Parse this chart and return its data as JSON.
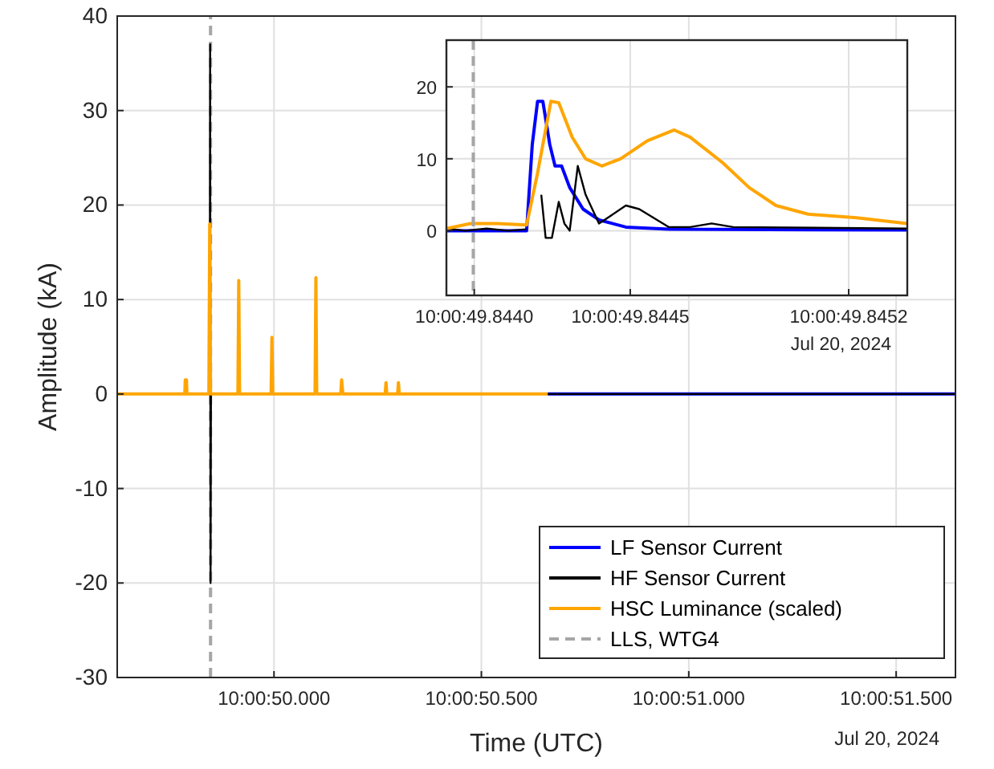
{
  "chart_data": [
    {
      "type": "line",
      "xlabel": "Time (UTC)",
      "ylabel": "Amplitude (kA)",
      "xlim": [
        "2024-07-20T10:00:49.622",
        "2024-07-20T10:00:51.643"
      ],
      "ylim": [
        -30,
        40
      ],
      "xticks": [
        {
          "value": "2024-07-20T10:00:50.000",
          "label": "10:00:50.000"
        },
        {
          "value": "2024-07-20T10:00:50.500",
          "label": "10:00:50.500"
        },
        {
          "value": "2024-07-20T10:00:51.000",
          "label": "10:00:51.000"
        },
        {
          "value": "2024-07-20T10:00:51.500",
          "label": "10:00:51.500"
        }
      ],
      "yticks": [
        -30,
        -20,
        -10,
        0,
        10,
        20,
        30,
        40
      ],
      "grid": true,
      "legend": "bottom right",
      "line_style": "solid",
      "marker": "none",
      "annotations": [
        "Jul 20, 2024"
      ],
      "series": [
        {
          "name": "LF Sensor Current",
          "color": "#0000ff",
          "x": [
            "2024-07-20T10:00:50.660",
            "2024-07-20T10:00:51.643"
          ],
          "values": [
            0,
            0
          ]
        },
        {
          "name": "HF Sensor Current",
          "color": "#000000",
          "x": [
            "2024-07-20T10:00:49.622",
            "2024-07-20T10:00:49.845",
            "2024-07-20T10:00:49.846",
            "2024-07-20T10:00:49.847",
            "2024-07-20T10:00:49.848",
            "2024-07-20T10:00:51.643"
          ],
          "values": [
            0,
            0,
            37,
            -20,
            0,
            0
          ]
        },
        {
          "name": "HSC Luminance (scaled)",
          "color": "#ffa500",
          "x": [
            "2024-07-20T10:00:49.622",
            "2024-07-20T10:00:49.785",
            "2024-07-20T10:00:49.786",
            "2024-07-20T10:00:49.789",
            "2024-07-20T10:00:49.790",
            "2024-07-20T10:00:49.843",
            "2024-07-20T10:00:49.845",
            "2024-07-20T10:00:49.847",
            "2024-07-20T10:00:49.913",
            "2024-07-20T10:00:49.915",
            "2024-07-20T10:00:49.917",
            "2024-07-20T10:00:49.993",
            "2024-07-20T10:00:49.995",
            "2024-07-20T10:00:49.997",
            "2024-07-20T10:00:50.099",
            "2024-07-20T10:00:50.101",
            "2024-07-20T10:00:50.103",
            "2024-07-20T10:00:50.161",
            "2024-07-20T10:00:50.163",
            "2024-07-20T10:00:50.166",
            "2024-07-20T10:00:50.268",
            "2024-07-20T10:00:50.270",
            "2024-07-20T10:00:50.272",
            "2024-07-20T10:00:50.298",
            "2024-07-20T10:00:50.300",
            "2024-07-20T10:00:50.302",
            "2024-07-20T10:00:50.660"
          ],
          "values": [
            0,
            0,
            1.5,
            1.5,
            0,
            0,
            18,
            0,
            0,
            12,
            0,
            0,
            6,
            0,
            0,
            12.3,
            0,
            0,
            1.5,
            0,
            0,
            1.2,
            0,
            0,
            1.2,
            0,
            0
          ]
        },
        {
          "name": "LLS, WTG4",
          "color": "#a6a6a6",
          "line_style": "dashed",
          "x": [
            "2024-07-20T10:00:49.847",
            "2024-07-20T10:00:49.847"
          ],
          "values": [
            -30,
            40
          ]
        }
      ]
    },
    {
      "type": "line",
      "xlim": [
        "2024-07-20T10:00:49.843911",
        "2024-07-20T10:00:49.845388"
      ],
      "ylim": [
        -9,
        26.5
      ],
      "xticks": [
        {
          "value": "2024-07-20T10:00:49.8440",
          "label": "10:00:49.8440"
        },
        {
          "value": "2024-07-20T10:00:49.8445",
          "label": "10:00:49.8445"
        },
        {
          "value": "2024-07-20T10:00:49.8452",
          "label": "10:00:49.8452"
        }
      ],
      "yticks": [
        0,
        10,
        20
      ],
      "grid": true,
      "legend": false,
      "line_style": "solid",
      "marker": "none",
      "annotations": [
        "Jul 20, 2024"
      ],
      "ref_lines": [
        {
          "axis": "x",
          "value": "2024-07-20T10:00:49.843997",
          "color": "#a6a6a6",
          "line_style": "dashed"
        }
      ],
      "series": [
        {
          "color": "#0000ff",
          "x": [
            "2024-07-20T10:00:49.843911",
            "2024-07-20T10:00:49.844168",
            "2024-07-20T10:00:49.844186",
            "2024-07-20T10:00:49.844203",
            "2024-07-20T10:00:49.844220",
            "2024-07-20T10:00:49.844242",
            "2024-07-20T10:00:49.844259",
            "2024-07-20T10:00:49.844280",
            "2024-07-20T10:00:49.844306",
            "2024-07-20T10:00:49.844349",
            "2024-07-20T10:00:49.844400",
            "2024-07-20T10:00:49.844486",
            "2024-07-20T10:00:49.844624",
            "2024-07-20T10:00:49.845388"
          ],
          "values": [
            0,
            0,
            12,
            18,
            18,
            12,
            9,
            9,
            6,
            3,
            1.5,
            0.5,
            0.2,
            0.1
          ]
        },
        {
          "color": "#000000",
          "x": [
            "2024-07-20T10:00:49.843911",
            "2024-07-20T10:00:49.843971",
            "2024-07-20T10:00:49.844040",
            "2024-07-20T10:00:49.844108",
            "2024-07-20T10:00:49.844167",
            "2024-07-20T10:00:49.844170",
            "2024-07-20T10:00:49.844184",
            "2024-07-20T10:00:49.844204",
            "2024-07-20T10:00:49.844215",
            "2024-07-20T10:00:49.844229",
            "2024-07-20T10:00:49.844249",
            "2024-07-20T10:00:49.844271",
            "2024-07-20T10:00:49.844289",
            "2024-07-20T10:00:49.844306",
            "2024-07-20T10:00:49.844332",
            "2024-07-20T10:00:49.844357",
            "2024-07-20T10:00:49.844400",
            "2024-07-20T10:00:49.844435",
            "2024-07-20T10:00:49.844486",
            "2024-07-20T10:00:49.844529",
            "2024-07-20T10:00:49.844624",
            "2024-07-20T10:00:49.844692",
            "2024-07-20T10:00:49.844761",
            "2024-07-20T10:00:49.844830",
            "2024-07-20T10:00:49.845388"
          ],
          "values": [
            0.3,
            0,
            0.3,
            0,
            0.2,
            null,
            null,
            null,
            5,
            -1,
            -1,
            4,
            1,
            0,
            9,
            5,
            1,
            2,
            3.5,
            3,
            0.5,
            0.5,
            1,
            0.5,
            0.3
          ]
        },
        {
          "color": "#ffa500",
          "x": [
            "2024-07-20T10:00:49.843911",
            "2024-07-20T10:00:49.843988",
            "2024-07-20T10:00:49.844074",
            "2024-07-20T10:00:49.844168",
            "2024-07-20T10:00:49.844203",
            "2024-07-20T10:00:49.844246",
            "2024-07-20T10:00:49.844271",
            "2024-07-20T10:00:49.844314",
            "2024-07-20T10:00:49.844357",
            "2024-07-20T10:00:49.844409",
            "2024-07-20T10:00:49.844469",
            "2024-07-20T10:00:49.844555",
            "2024-07-20T10:00:49.844641",
            "2024-07-20T10:00:49.844692",
            "2024-07-20T10:00:49.844795",
            "2024-07-20T10:00:49.844881",
            "2024-07-20T10:00:49.844967",
            "2024-07-20T10:00:49.845070",
            "2024-07-20T10:00:49.845225",
            "2024-07-20T10:00:49.845388"
          ],
          "values": [
            0.3,
            1,
            1,
            0.8,
            8,
            18,
            17.8,
            13,
            10,
            9,
            10,
            12.5,
            14,
            13,
            9.5,
            6,
            3.5,
            2.3,
            1.8,
            1
          ]
        }
      ]
    }
  ]
}
